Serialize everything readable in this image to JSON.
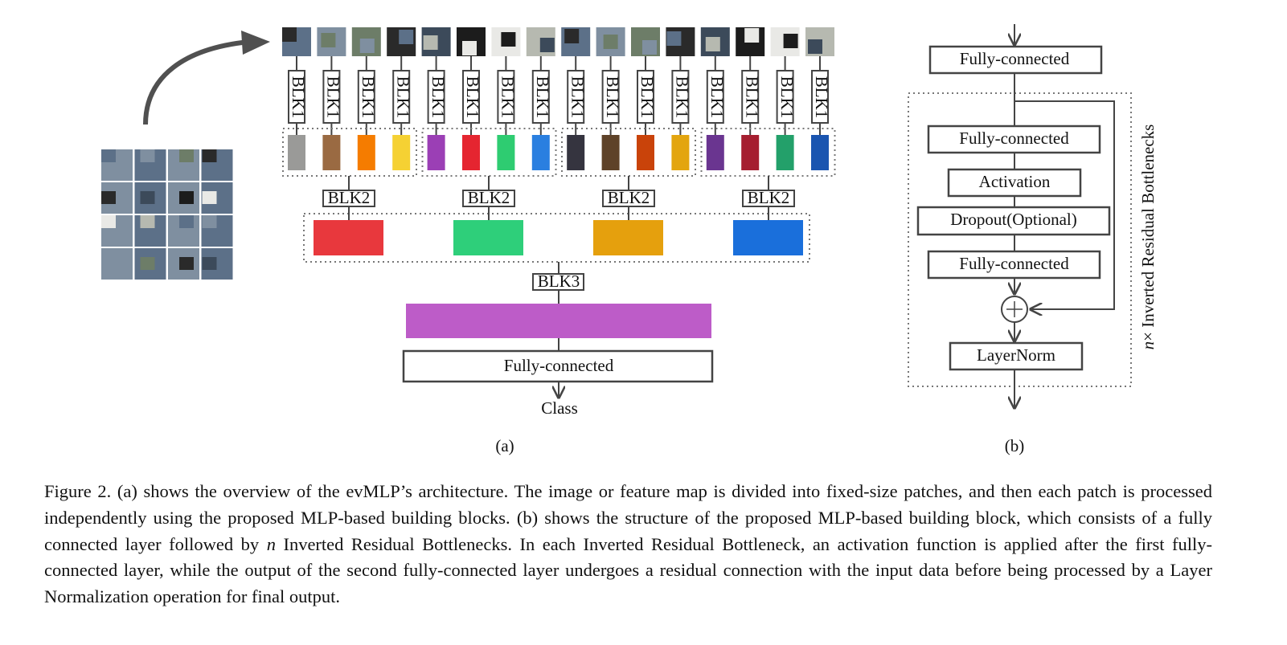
{
  "panel_a": {
    "blk1": [
      "BLK1",
      "BLK1",
      "BLK1",
      "BLK1",
      "BLK1",
      "BLK1",
      "BLK1",
      "BLK1",
      "BLK1",
      "BLK1",
      "BLK1",
      "BLK1",
      "BLK1",
      "BLK1",
      "BLK1",
      "BLK1"
    ],
    "blk2": [
      "BLK2",
      "BLK2",
      "BLK2",
      "BLK2"
    ],
    "blk3": "BLK3",
    "fc": "Fully-connected",
    "output": "Class",
    "label": "(a)"
  },
  "panel_b": {
    "input_fc": "Fully-connected",
    "layers": [
      "Fully-connected",
      "Activation",
      "Dropout(Optional)",
      "Fully-connected"
    ],
    "norm": "LayerNorm",
    "repeat_n": "n",
    "repeat_label": "× Inverted Residual Bottlenecks",
    "label": "(b)"
  },
  "caption": {
    "text1": "Figure 2.  (a) shows the overview of the evMLP’s architecture.  The image or feature map is divided into fixed-size patches, and then each patch is processed independently using the proposed MLP-based building blocks.  (b) shows the structure of the proposed MLP-based building block, which consists of a fully connected layer followed by",
    "n": "n",
    "text2": "Inverted Residual Bottlenecks.  In each Inverted Residual Bottleneck, an activation function is applied after the first fully-connected layer, while the output of the second fully-connected layer undergoes a residual connection with the input data before being processed by a Layer Normalization operation for final output."
  }
}
